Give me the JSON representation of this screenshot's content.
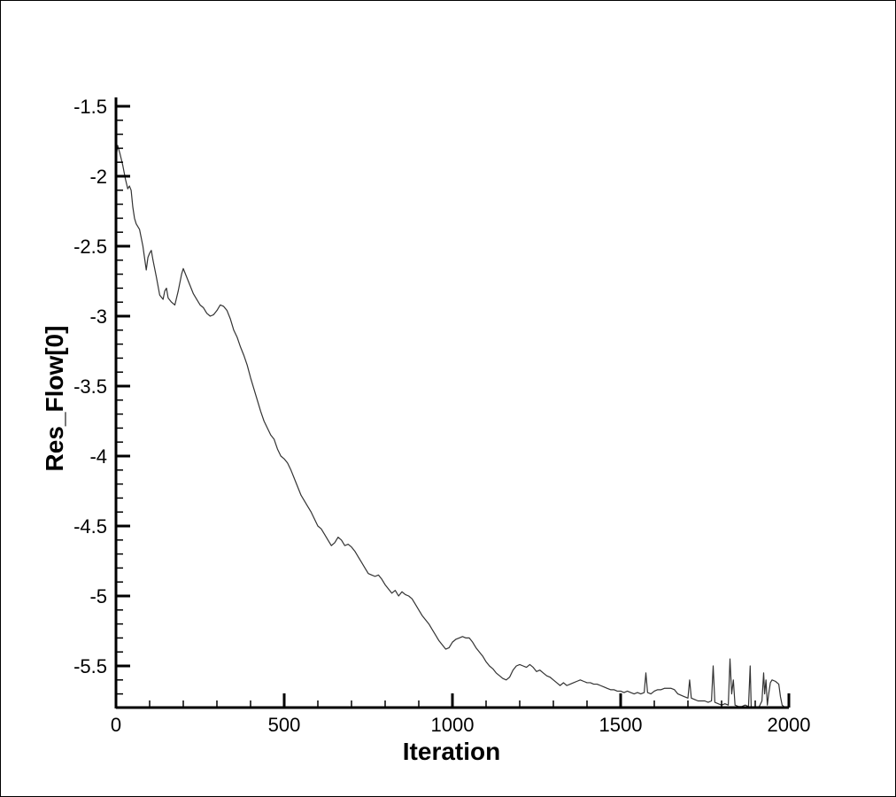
{
  "chart_data": {
    "type": "line",
    "title": "",
    "xlabel": "Iteration",
    "ylabel": "Res_Flow[0]",
    "xlim": [
      0,
      2000
    ],
    "ylim": [
      -5.8,
      -1.5
    ],
    "grid": false,
    "legend": "none",
    "x_ticks": [
      "0",
      "500",
      "1000",
      "1500",
      "2000"
    ],
    "y_ticks": [
      "-1.5",
      "-2",
      "-2.5",
      "-3",
      "-3.5",
      "-4",
      "-4.5",
      "-5",
      "-5.5"
    ],
    "series": [
      {
        "color": "#333333",
        "points": [
          [
            0,
            -1.88
          ],
          [
            5,
            -1.78
          ],
          [
            12,
            -1.84
          ],
          [
            20,
            -1.92
          ],
          [
            28,
            -2.02
          ],
          [
            35,
            -2.09
          ],
          [
            40,
            -2.07
          ],
          [
            45,
            -2.1
          ],
          [
            50,
            -2.22
          ],
          [
            55,
            -2.3
          ],
          [
            60,
            -2.34
          ],
          [
            70,
            -2.38
          ],
          [
            80,
            -2.5
          ],
          [
            90,
            -2.67
          ],
          [
            95,
            -2.58
          ],
          [
            100,
            -2.55
          ],
          [
            105,
            -2.53
          ],
          [
            110,
            -2.6
          ],
          [
            120,
            -2.72
          ],
          [
            130,
            -2.85
          ],
          [
            140,
            -2.88
          ],
          [
            145,
            -2.82
          ],
          [
            150,
            -2.8
          ],
          [
            155,
            -2.87
          ],
          [
            165,
            -2.9
          ],
          [
            175,
            -2.92
          ],
          [
            185,
            -2.82
          ],
          [
            195,
            -2.7
          ],
          [
            200,
            -2.66
          ],
          [
            210,
            -2.72
          ],
          [
            220,
            -2.78
          ],
          [
            230,
            -2.84
          ],
          [
            240,
            -2.88
          ],
          [
            250,
            -2.92
          ],
          [
            260,
            -2.94
          ],
          [
            270,
            -2.98
          ],
          [
            280,
            -3.0
          ],
          [
            290,
            -2.99
          ],
          [
            300,
            -2.96
          ],
          [
            310,
            -2.92
          ],
          [
            320,
            -2.93
          ],
          [
            330,
            -2.96
          ],
          [
            340,
            -3.02
          ],
          [
            350,
            -3.1
          ],
          [
            360,
            -3.15
          ],
          [
            370,
            -3.22
          ],
          [
            380,
            -3.28
          ],
          [
            390,
            -3.35
          ],
          [
            400,
            -3.44
          ],
          [
            410,
            -3.52
          ],
          [
            420,
            -3.6
          ],
          [
            430,
            -3.68
          ],
          [
            440,
            -3.75
          ],
          [
            450,
            -3.8
          ],
          [
            460,
            -3.85
          ],
          [
            470,
            -3.88
          ],
          [
            480,
            -3.95
          ],
          [
            490,
            -4.0
          ],
          [
            500,
            -4.02
          ],
          [
            510,
            -4.05
          ],
          [
            520,
            -4.1
          ],
          [
            530,
            -4.16
          ],
          [
            540,
            -4.22
          ],
          [
            550,
            -4.28
          ],
          [
            560,
            -4.32
          ],
          [
            570,
            -4.36
          ],
          [
            580,
            -4.4
          ],
          [
            590,
            -4.45
          ],
          [
            600,
            -4.5
          ],
          [
            610,
            -4.52
          ],
          [
            620,
            -4.56
          ],
          [
            630,
            -4.6
          ],
          [
            640,
            -4.64
          ],
          [
            650,
            -4.62
          ],
          [
            660,
            -4.58
          ],
          [
            670,
            -4.6
          ],
          [
            680,
            -4.64
          ],
          [
            690,
            -4.63
          ],
          [
            700,
            -4.65
          ],
          [
            710,
            -4.68
          ],
          [
            720,
            -4.72
          ],
          [
            730,
            -4.76
          ],
          [
            740,
            -4.8
          ],
          [
            750,
            -4.84
          ],
          [
            760,
            -4.85
          ],
          [
            770,
            -4.86
          ],
          [
            780,
            -4.85
          ],
          [
            790,
            -4.88
          ],
          [
            800,
            -4.92
          ],
          [
            810,
            -4.95
          ],
          [
            820,
            -4.98
          ],
          [
            830,
            -4.96
          ],
          [
            840,
            -5.0
          ],
          [
            850,
            -4.97
          ],
          [
            860,
            -4.99
          ],
          [
            870,
            -5.0
          ],
          [
            880,
            -5.02
          ],
          [
            890,
            -5.06
          ],
          [
            900,
            -5.1
          ],
          [
            910,
            -5.14
          ],
          [
            920,
            -5.17
          ],
          [
            930,
            -5.2
          ],
          [
            940,
            -5.24
          ],
          [
            950,
            -5.28
          ],
          [
            960,
            -5.32
          ],
          [
            970,
            -5.35
          ],
          [
            980,
            -5.38
          ],
          [
            990,
            -5.37
          ],
          [
            1000,
            -5.33
          ],
          [
            1010,
            -5.31
          ],
          [
            1020,
            -5.3
          ],
          [
            1030,
            -5.29
          ],
          [
            1040,
            -5.3
          ],
          [
            1050,
            -5.3
          ],
          [
            1060,
            -5.33
          ],
          [
            1070,
            -5.37
          ],
          [
            1080,
            -5.4
          ],
          [
            1090,
            -5.43
          ],
          [
            1100,
            -5.47
          ],
          [
            1110,
            -5.5
          ],
          [
            1120,
            -5.52
          ],
          [
            1130,
            -5.55
          ],
          [
            1140,
            -5.57
          ],
          [
            1150,
            -5.59
          ],
          [
            1160,
            -5.6
          ],
          [
            1170,
            -5.58
          ],
          [
            1180,
            -5.53
          ],
          [
            1190,
            -5.5
          ],
          [
            1200,
            -5.49
          ],
          [
            1210,
            -5.5
          ],
          [
            1220,
            -5.51
          ],
          [
            1230,
            -5.49
          ],
          [
            1240,
            -5.51
          ],
          [
            1250,
            -5.54
          ],
          [
            1260,
            -5.53
          ],
          [
            1270,
            -5.55
          ],
          [
            1280,
            -5.57
          ],
          [
            1290,
            -5.58
          ],
          [
            1300,
            -5.6
          ],
          [
            1310,
            -5.62
          ],
          [
            1320,
            -5.64
          ],
          [
            1330,
            -5.62
          ],
          [
            1340,
            -5.64
          ],
          [
            1350,
            -5.63
          ],
          [
            1360,
            -5.62
          ],
          [
            1370,
            -5.61
          ],
          [
            1380,
            -5.6
          ],
          [
            1390,
            -5.61
          ],
          [
            1400,
            -5.62
          ],
          [
            1410,
            -5.62
          ],
          [
            1420,
            -5.63
          ],
          [
            1430,
            -5.63
          ],
          [
            1440,
            -5.64
          ],
          [
            1450,
            -5.65
          ],
          [
            1460,
            -5.66
          ],
          [
            1470,
            -5.67
          ],
          [
            1480,
            -5.67
          ],
          [
            1490,
            -5.68
          ],
          [
            1500,
            -5.68
          ],
          [
            1510,
            -5.69
          ],
          [
            1520,
            -5.68
          ],
          [
            1530,
            -5.69
          ],
          [
            1540,
            -5.7
          ],
          [
            1550,
            -5.69
          ],
          [
            1560,
            -5.7
          ],
          [
            1570,
            -5.69
          ],
          [
            1575,
            -5.55
          ],
          [
            1580,
            -5.69
          ],
          [
            1590,
            -5.7
          ],
          [
            1600,
            -5.68
          ],
          [
            1610,
            -5.67
          ],
          [
            1620,
            -5.67
          ],
          [
            1630,
            -5.66
          ],
          [
            1640,
            -5.66
          ],
          [
            1650,
            -5.66
          ],
          [
            1660,
            -5.67
          ],
          [
            1670,
            -5.7
          ],
          [
            1680,
            -5.71
          ],
          [
            1690,
            -5.72
          ],
          [
            1700,
            -5.73
          ],
          [
            1705,
            -5.6
          ],
          [
            1710,
            -5.73
          ],
          [
            1720,
            -5.74
          ],
          [
            1730,
            -5.75
          ],
          [
            1740,
            -5.75
          ],
          [
            1750,
            -5.75
          ],
          [
            1760,
            -5.76
          ],
          [
            1770,
            -5.75
          ],
          [
            1775,
            -5.5
          ],
          [
            1780,
            -5.76
          ],
          [
            1790,
            -5.77
          ],
          [
            1800,
            -5.78
          ],
          [
            1810,
            -5.77
          ],
          [
            1820,
            -5.78
          ],
          [
            1825,
            -5.45
          ],
          [
            1830,
            -5.7
          ],
          [
            1835,
            -5.6
          ],
          [
            1840,
            -5.78
          ],
          [
            1850,
            -5.79
          ],
          [
            1860,
            -5.79
          ],
          [
            1870,
            -5.78
          ],
          [
            1880,
            -5.79
          ],
          [
            1885,
            -5.5
          ],
          [
            1888,
            -5.79
          ],
          [
            1900,
            -5.8
          ],
          [
            1910,
            -5.8
          ],
          [
            1920,
            -5.75
          ],
          [
            1925,
            -5.55
          ],
          [
            1928,
            -5.7
          ],
          [
            1932,
            -5.6
          ],
          [
            1936,
            -5.78
          ],
          [
            1940,
            -5.7
          ],
          [
            1945,
            -5.62
          ],
          [
            1950,
            -5.6
          ],
          [
            1960,
            -5.61
          ],
          [
            1970,
            -5.63
          ],
          [
            1975,
            -5.72
          ],
          [
            1980,
            -5.78
          ],
          [
            1990,
            -5.8
          ],
          [
            1995,
            -5.79
          ]
        ]
      }
    ]
  }
}
